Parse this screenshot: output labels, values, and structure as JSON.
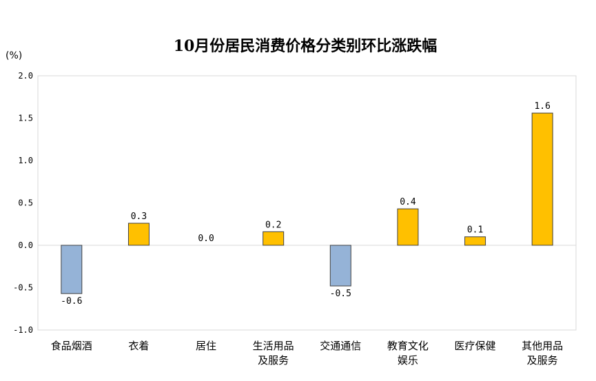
{
  "chart_data": {
    "type": "bar",
    "title": "10月份居民消费价格分类别环比涨跌幅",
    "unit_label": "(%)",
    "categories": [
      [
        "食品烟酒"
      ],
      [
        "衣着"
      ],
      [
        "居住"
      ],
      [
        "生活用品",
        "及服务"
      ],
      [
        "交通通信"
      ],
      [
        "教育文化",
        "娱乐"
      ],
      [
        "医疗保健"
      ],
      [
        "其他用品",
        "及服务"
      ]
    ],
    "values": [
      -0.6,
      0.3,
      0.0,
      0.2,
      -0.5,
      0.4,
      0.1,
      1.6
    ],
    "value_labels": [
      "-0.6",
      "0.3",
      "0.0",
      "0.2",
      "-0.5",
      "0.4",
      "0.1",
      "1.6"
    ],
    "bar_heights": [
      -0.57,
      0.26,
      0.0,
      0.16,
      -0.48,
      0.43,
      0.1,
      1.56
    ],
    "ylim": [
      -1.0,
      2.0
    ],
    "yticks": [
      "2.0",
      "1.5",
      "1.0",
      "0.5",
      "0.0",
      "-0.5",
      "-1.0"
    ],
    "ytick_values": [
      2.0,
      1.5,
      1.0,
      0.5,
      0.0,
      -0.5,
      -1.0
    ],
    "positive_color": "#FFC000",
    "negative_color": "#95B3D7",
    "grid": false,
    "legend": "none"
  }
}
